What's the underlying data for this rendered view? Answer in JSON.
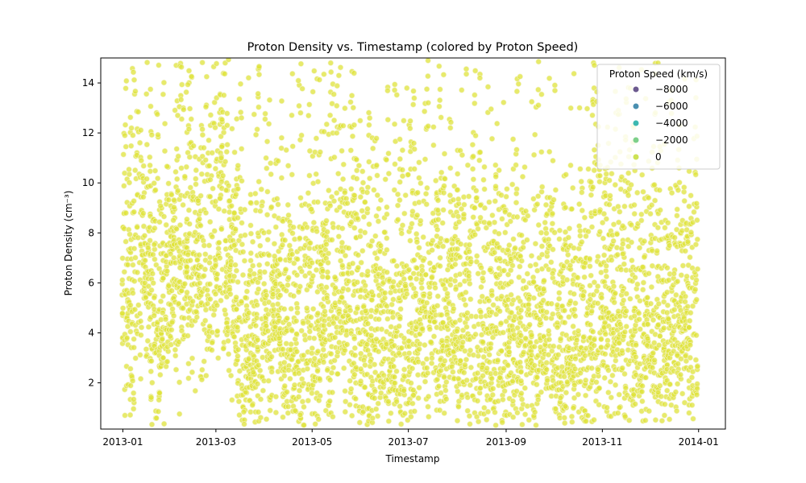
{
  "chart_data": {
    "type": "scatter",
    "title": "Proton Density vs. Timestamp (colored by Proton Speed)",
    "xlabel": "Timestamp",
    "ylabel": "Proton Density (cm⁻³)",
    "x_range": [
      "2012-12-18",
      "2014-01-18"
    ],
    "ylim": [
      0.15,
      15.0
    ],
    "x_ticks": [
      {
        "date": "2013-01-01",
        "label": "2013-01"
      },
      {
        "date": "2013-03-01",
        "label": "2013-03"
      },
      {
        "date": "2013-05-01",
        "label": "2013-05"
      },
      {
        "date": "2013-07-01",
        "label": "2013-07"
      },
      {
        "date": "2013-09-01",
        "label": "2013-09"
      },
      {
        "date": "2013-11-01",
        "label": "2013-11"
      },
      {
        "date": "2014-01-01",
        "label": "2014-01"
      }
    ],
    "y_ticks": [
      2,
      4,
      6,
      8,
      10,
      12,
      14
    ],
    "grid": false,
    "legend": {
      "title": "Proton Speed (km/s)",
      "placement": "upper-right",
      "entries": [
        {
          "label": "−8000",
          "color": "#6c5a8f"
        },
        {
          "label": "−6000",
          "color": "#4a8fb0"
        },
        {
          "label": "−4000",
          "color": "#3cb8b0"
        },
        {
          "label": "−2000",
          "color": "#7ed08a"
        },
        {
          "label": "0",
          "color": "#cde254"
        }
      ]
    },
    "point_color": "#dfe33a",
    "point_edge_color": "#f3f3c8",
    "series": [
      {
        "anchors": [
          {
            "x": "2013-01-01",
            "y": 5.0
          },
          {
            "x": "2013-01-12",
            "y": 7.5
          },
          {
            "x": "2013-01-25",
            "y": 4.5
          },
          {
            "x": "2013-02-08",
            "y": 8.0
          },
          {
            "x": "2013-02-22",
            "y": 6.5
          },
          {
            "x": "2013-03-05",
            "y": 9.0
          },
          {
            "x": "2013-03-20",
            "y": 3.5
          },
          {
            "x": "2013-04-05",
            "y": 5.0
          },
          {
            "x": "2013-04-20",
            "y": 4.0
          },
          {
            "x": "2013-05-10",
            "y": 5.5
          },
          {
            "x": "2013-05-25",
            "y": 6.0
          },
          {
            "x": "2013-06-10",
            "y": 4.0
          },
          {
            "x": "2013-06-25",
            "y": 3.5
          },
          {
            "x": "2013-07-10",
            "y": 5.5
          },
          {
            "x": "2013-07-25",
            "y": 4.5
          },
          {
            "x": "2013-08-10",
            "y": 4.0
          },
          {
            "x": "2013-08-25",
            "y": 4.5
          },
          {
            "x": "2013-09-10",
            "y": 4.0
          },
          {
            "x": "2013-09-25",
            "y": 4.0
          },
          {
            "x": "2013-10-10",
            "y": 3.5
          },
          {
            "x": "2013-10-25",
            "y": 4.5
          },
          {
            "x": "2013-11-10",
            "y": 5.5
          },
          {
            "x": "2013-11-25",
            "y": 4.0
          },
          {
            "x": "2013-12-10",
            "y": 4.5
          },
          {
            "x": "2013-12-25",
            "y": 5.0
          },
          {
            "x": "2013-12-31",
            "y": 4.5
          }
        ]
      }
    ]
  }
}
